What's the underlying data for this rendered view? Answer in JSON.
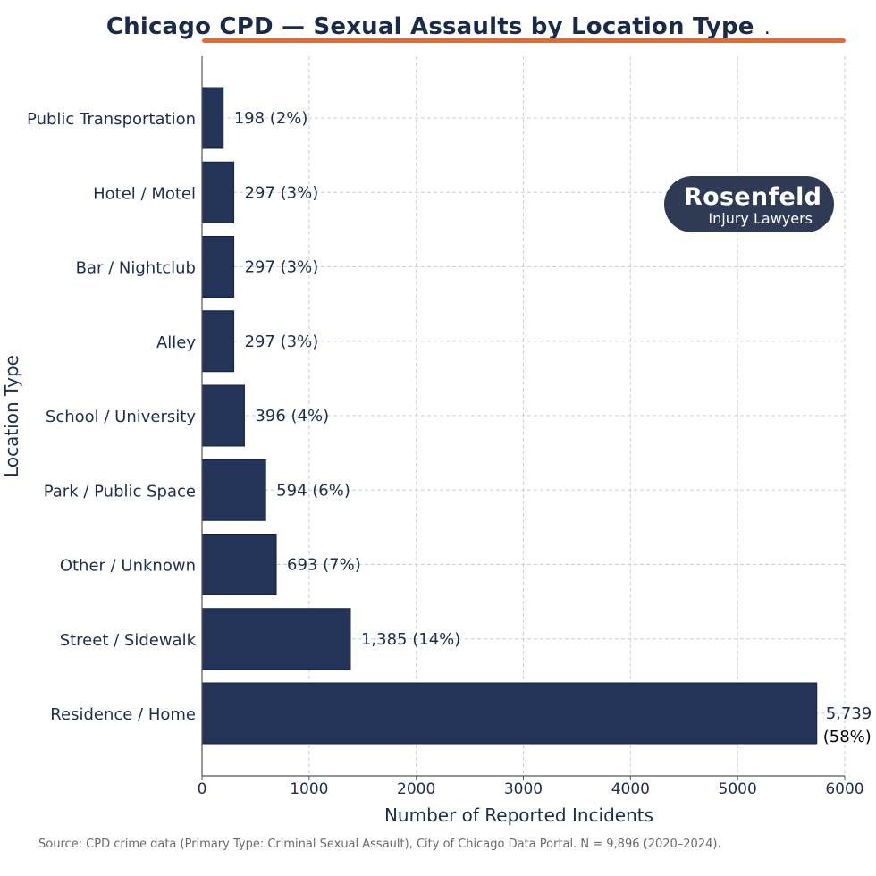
{
  "title": "Chicago CPD — Sexual Assaults by Location Type",
  "title_suffix": ".",
  "source": "Source: CPD crime data (Primary Type: Criminal Sexual Assault), City of Chicago Data Portal. N = 9,896 (2020–2024).",
  "logo": {
    "name": "Rosenfeld",
    "sub": "Injury Lawyers"
  },
  "colors": {
    "bar": "#243459",
    "accent": "#e8692a",
    "grid": "#c9ced8",
    "text": "#1f2d4d"
  },
  "chart_data": {
    "type": "bar",
    "orientation": "horizontal",
    "title": "Chicago CPD — Sexual Assaults by Location Type",
    "xlabel": "Number of Reported Incidents",
    "ylabel": "Location Type",
    "xlim": [
      0,
      6000
    ],
    "xticks": [
      0,
      1000,
      2000,
      3000,
      4000,
      5000,
      6000
    ],
    "grid": true,
    "categories": [
      "Public Transportation",
      "Hotel / Motel",
      "Bar / Nightclub",
      "Alley",
      "School / University",
      "Park / Public Space",
      "Other / Unknown",
      "Street / Sidewalk",
      "Residence / Home"
    ],
    "values": [
      198,
      297,
      297,
      297,
      396,
      594,
      693,
      1385,
      5739
    ],
    "data_labels": [
      "198 (2%)",
      "297 (3%)",
      "297 (3%)",
      "297 (3%)",
      "396 (4%)",
      "594 (6%)",
      "693 (7%)",
      "1,385 (14%)",
      "5,739 (58%)"
    ]
  }
}
